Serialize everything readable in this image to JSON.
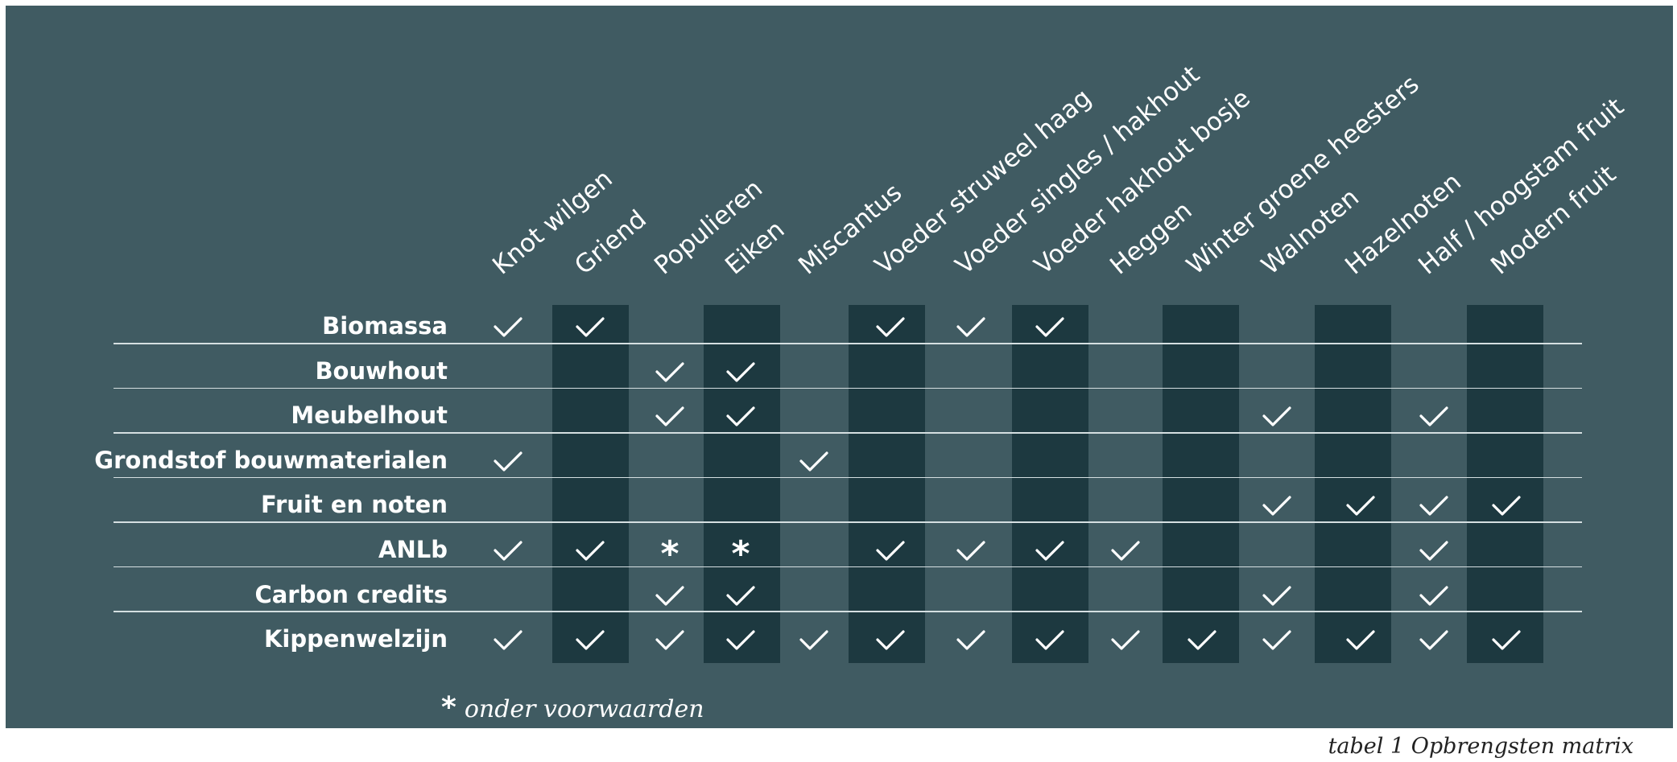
{
  "columns": [
    "Knot wilgen",
    "Griend",
    "Populieren",
    "Eiken",
    "Miscantus",
    "Voeder struweel haag",
    "Voeder singles / hakhout",
    "Voeder hakhout bosje",
    "Heggen",
    "Winter groene heesters",
    "Walnoten",
    "Hazelnoten",
    "Half / hoogstam fruit",
    "Modern fruit"
  ],
  "rows": [
    {
      "label": "Biomassa",
      "cells": [
        "check",
        "check",
        "",
        "",
        "",
        "check",
        "check",
        "check",
        "",
        "",
        "",
        "",
        "",
        ""
      ]
    },
    {
      "label": "Bouwhout",
      "cells": [
        "",
        "",
        "check",
        "check",
        "",
        "",
        "",
        "",
        "",
        "",
        "",
        "",
        "",
        ""
      ]
    },
    {
      "label": "Meubelhout",
      "cells": [
        "",
        "",
        "check",
        "check",
        "",
        "",
        "",
        "",
        "",
        "",
        "check",
        "",
        "check",
        ""
      ]
    },
    {
      "label": "Grondstof bouwmaterialen",
      "cells": [
        "check",
        "",
        "",
        "",
        "check",
        "",
        "",
        "",
        "",
        "",
        "",
        "",
        "",
        ""
      ]
    },
    {
      "label": "Fruit en noten",
      "cells": [
        "",
        "",
        "",
        "",
        "",
        "",
        "",
        "",
        "",
        "",
        "check",
        "check",
        "check",
        "check"
      ]
    },
    {
      "label": "ANLb",
      "cells": [
        "check",
        "check",
        "star",
        "star",
        "",
        "check",
        "check",
        "check",
        "check",
        "",
        "",
        "",
        "check",
        ""
      ]
    },
    {
      "label": "Carbon credits",
      "cells": [
        "",
        "",
        "check",
        "check",
        "",
        "",
        "",
        "",
        "",
        "",
        "check",
        "",
        "check",
        ""
      ]
    },
    {
      "label": "Kippenwelzijn",
      "cells": [
        "check",
        "check",
        "check",
        "check",
        "check",
        "check",
        "check",
        "check",
        "check",
        "check",
        "check",
        "check",
        "check",
        "check"
      ]
    }
  ],
  "footnote": {
    "marker": "*",
    "text": "onder voorwaarden"
  },
  "caption": "tabel 1 Opbrengsten matrix",
  "colors": {
    "panel": "#405b62",
    "stripe": "#1d3940",
    "text": "#ffffff",
    "caption": "#222222"
  }
}
